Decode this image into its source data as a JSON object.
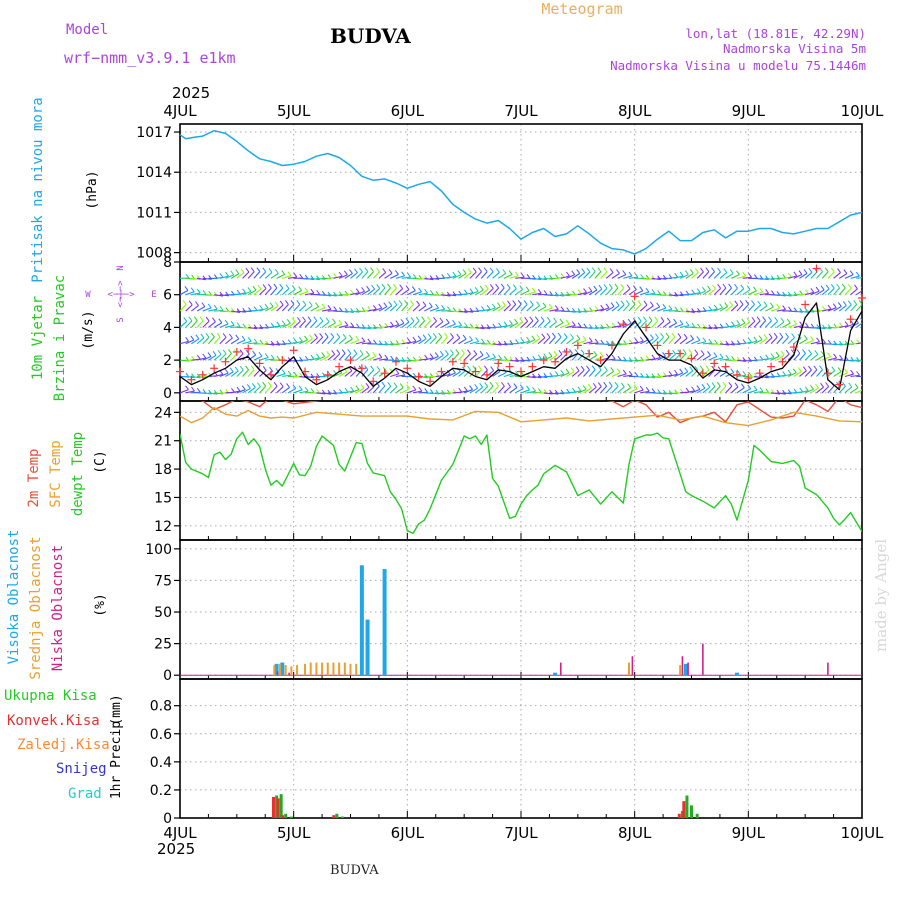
{
  "header": {
    "model_label": "Model",
    "model_name": "wrf−nmm_v3.9.1  e1km",
    "station": "BUDVA",
    "meteogram": "Meteogram",
    "lonlat": "lon,lat (18.81E, 42.29N)",
    "elevation": "Nadmorska Visina 5m",
    "model_elevation": "Nadmorska Visina u modelu 75.1446m",
    "year": "2025",
    "footer_station": "BUDVA",
    "watermark": "made by Angel"
  },
  "colors": {
    "pressure": "#1ea8e8",
    "wind_speed": "#000000",
    "gust": "#ff3333",
    "t2m": "#e8503a",
    "sfc": "#e8a030",
    "dewpt": "#22cc22",
    "high_cloud": "#1ea8e8",
    "mid_cloud": "#e8a030",
    "low_cloud": "#cc2288",
    "total_precip": "#22aa22",
    "conv_precip": "#e83030",
    "frozen_precip": "#ff8833",
    "snow": "#3333dd",
    "hail": "#22cccc",
    "label_purple": "#aa44dd",
    "label_orange": "#e8b060"
  },
  "chart_data": [
    {
      "id": "pressure",
      "type": "line",
      "x_ticks": [
        "4JUL",
        "5JUL",
        "6JUL",
        "7JUL",
        "8JUL",
        "9JUL",
        "10JUL"
      ],
      "xlim": [
        0,
        6
      ],
      "ylabel": "Pritisak na nivou mora",
      "unit": "(hPa)",
      "yticks": [
        1008,
        1011,
        1014,
        1017
      ],
      "ylim": [
        1007.3,
        1017.6
      ],
      "series": [
        {
          "x": [
            0,
            0.05,
            0.12,
            0.2,
            0.3,
            0.4,
            0.5,
            0.6,
            0.7,
            0.8,
            0.9,
            1.0,
            1.1,
            1.2,
            1.3,
            1.4,
            1.5,
            1.6,
            1.7,
            1.8,
            1.9,
            2.0,
            2.1,
            2.2,
            2.3,
            2.4,
            2.5,
            2.6,
            2.7,
            2.8,
            2.9,
            3.0,
            3.1,
            3.2,
            3.3,
            3.4,
            3.5,
            3.6,
            3.7,
            3.8,
            3.9,
            4.0,
            4.1,
            4.2,
            4.3,
            4.4,
            4.5,
            4.6,
            4.7,
            4.8,
            4.9,
            5.0,
            5.1,
            5.2,
            5.3,
            5.4,
            5.5,
            5.6,
            5.7,
            5.8,
            5.9,
            6.0
          ],
          "y": [
            1016.8,
            1016.5,
            1016.6,
            1016.7,
            1017.1,
            1016.9,
            1016.3,
            1015.6,
            1015.0,
            1014.8,
            1014.5,
            1014.6,
            1014.8,
            1015.2,
            1015.4,
            1015.1,
            1014.5,
            1013.7,
            1013.4,
            1013.5,
            1013.2,
            1012.8,
            1013.1,
            1013.3,
            1012.6,
            1011.6,
            1011.0,
            1010.5,
            1010.2,
            1010.4,
            1009.8,
            1009.0,
            1009.5,
            1009.8,
            1009.2,
            1009.4,
            1010.0,
            1009.4,
            1008.7,
            1008.3,
            1008.2,
            1007.9,
            1008.3,
            1009.0,
            1009.6,
            1008.9,
            1008.9,
            1009.5,
            1009.7,
            1009.1,
            1009.6,
            1009.6,
            1009.8,
            1009.8,
            1009.5,
            1009.4,
            1009.6,
            1009.8,
            1009.8,
            1010.3,
            1010.8,
            1011.0
          ]
        }
      ]
    },
    {
      "id": "wind",
      "type": "line",
      "ylabel_1": "10m Vjetar",
      "ylabel_2": "Brzina i Pravac",
      "unit": "(m/s)",
      "compass": [
        "N",
        "W",
        "E",
        "S"
      ],
      "compass_arrows": "<−|−>",
      "yticks": [
        0,
        2,
        4,
        6,
        8
      ],
      "ylim": [
        -0.5,
        8
      ],
      "barb_levels": [
        0,
        1,
        2,
        3,
        4,
        5,
        6,
        7
      ],
      "series": [
        {
          "key": "speed",
          "x": [
            0,
            0.1,
            0.2,
            0.3,
            0.4,
            0.5,
            0.6,
            0.7,
            0.8,
            0.9,
            1.0,
            1.1,
            1.2,
            1.3,
            1.4,
            1.5,
            1.6,
            1.7,
            1.8,
            1.9,
            2.0,
            2.1,
            2.2,
            2.3,
            2.4,
            2.5,
            2.6,
            2.7,
            2.8,
            2.9,
            3.0,
            3.1,
            3.2,
            3.3,
            3.4,
            3.5,
            3.6,
            3.7,
            3.8,
            3.9,
            4.0,
            4.1,
            4.2,
            4.3,
            4.4,
            4.5,
            4.6,
            4.7,
            4.8,
            4.9,
            5.0,
            5.1,
            5.2,
            5.3,
            5.4,
            5.5,
            5.6,
            5.7,
            5.8,
            5.9,
            6.0
          ],
          "y": [
            1.0,
            0.5,
            0.8,
            1.2,
            1.5,
            2.0,
            2.2,
            1.4,
            0.8,
            1.6,
            2.2,
            1.0,
            0.5,
            0.8,
            1.3,
            1.6,
            1.2,
            0.4,
            0.9,
            1.5,
            1.2,
            0.7,
            0.4,
            1.0,
            1.5,
            1.4,
            1.0,
            0.8,
            1.4,
            1.3,
            1.0,
            1.3,
            1.6,
            1.5,
            2.1,
            2.4,
            2.0,
            1.6,
            2.4,
            3.6,
            4.4,
            3.4,
            2.4,
            2.0,
            2.0,
            1.7,
            0.9,
            1.4,
            1.3,
            0.8,
            0.6,
            0.9,
            1.3,
            1.5,
            2.3,
            4.6,
            5.5,
            0.8,
            0.2,
            3.8,
            5.0
          ]
        },
        {
          "key": "gust",
          "x": [
            0,
            0.1,
            0.2,
            0.3,
            0.4,
            0.5,
            0.6,
            0.7,
            0.8,
            0.9,
            1.0,
            1.1,
            1.2,
            1.3,
            1.4,
            1.5,
            1.6,
            1.7,
            1.8,
            1.9,
            2.0,
            2.1,
            2.2,
            2.3,
            2.4,
            2.5,
            2.6,
            2.7,
            2.8,
            2.9,
            3.0,
            3.1,
            3.2,
            3.3,
            3.4,
            3.5,
            3.6,
            3.7,
            3.8,
            3.9,
            4.0,
            4.1,
            4.2,
            4.3,
            4.4,
            4.5,
            4.6,
            4.7,
            4.8,
            4.9,
            5.0,
            5.1,
            5.2,
            5.3,
            5.4,
            5.5,
            5.6,
            5.7,
            5.8,
            5.9,
            6.0
          ],
          "y": [
            1.3,
            0.8,
            1.1,
            1.5,
            1.9,
            2.5,
            2.7,
            1.8,
            1.1,
            2.0,
            2.6,
            1.3,
            0.8,
            1.1,
            1.6,
            2.0,
            1.5,
            0.7,
            1.2,
            1.9,
            1.5,
            1.0,
            0.7,
            1.3,
            1.9,
            1.8,
            1.3,
            1.1,
            1.8,
            1.6,
            1.3,
            1.6,
            2.0,
            1.9,
            2.5,
            2.9,
            2.4,
            2.0,
            2.9,
            4.2,
            5.9,
            4.0,
            2.9,
            2.4,
            2.4,
            2.1,
            1.2,
            1.8,
            1.6,
            1.1,
            0.9,
            1.2,
            1.6,
            1.9,
            2.8,
            5.4,
            7.6,
            1.2,
            0.5,
            4.5,
            5.8
          ]
        }
      ]
    },
    {
      "id": "temperature",
      "type": "line",
      "ylabel_1": "2m Temp",
      "ylabel_2": "SFC Temp",
      "ylabel_3": "dewpt Temp",
      "unit": "(C)",
      "yticks": [
        12,
        15,
        18,
        21,
        24
      ],
      "ylim": [
        10.5,
        25.2
      ],
      "series": [
        {
          "key": "t2m",
          "x": [
            0,
            0.1,
            0.2,
            0.3,
            0.4,
            0.5,
            0.6,
            0.7,
            0.8,
            0.9,
            1.0,
            1.2,
            1.4,
            1.6,
            1.8,
            2.0,
            2.2,
            2.4,
            2.6,
            2.8,
            3.0,
            3.2,
            3.4,
            3.6,
            3.8,
            3.9,
            4.0,
            4.1,
            4.2,
            4.3,
            4.4,
            4.5,
            4.6,
            4.7,
            4.8,
            4.9,
            5.0,
            5.1,
            5.2,
            5.3,
            5.4,
            5.5,
            5.6,
            5.7,
            5.8,
            5.9,
            6.0
          ],
          "y": [
            25.5,
            25.6,
            25.2,
            24.3,
            24.8,
            25.4,
            25.1,
            24.6,
            25.6,
            25.3,
            24.9,
            25.2,
            25.6,
            25.4,
            25.3,
            25.5,
            25.6,
            25.5,
            25.4,
            25.6,
            25.5,
            25.6,
            25.6,
            25.5,
            25.2,
            24.6,
            25.3,
            24.8,
            23.5,
            24.0,
            22.9,
            23.4,
            23.6,
            24.0,
            23.0,
            24.8,
            25.1,
            24.3,
            23.5,
            23.4,
            23.6,
            25.3,
            24.8,
            24.1,
            25.6,
            24.8,
            24.5
          ]
        },
        {
          "key": "sfc",
          "x": [
            0,
            0.1,
            0.2,
            0.3,
            0.4,
            0.5,
            0.6,
            0.7,
            0.8,
            0.9,
            1.0,
            1.2,
            1.4,
            1.6,
            1.8,
            2.0,
            2.2,
            2.4,
            2.6,
            2.8,
            3.0,
            3.2,
            3.4,
            3.6,
            3.8,
            4.0,
            4.2,
            4.4,
            4.6,
            4.8,
            5.0,
            5.2,
            5.4,
            5.6,
            5.8,
            6.0
          ],
          "y": [
            23.6,
            22.9,
            23.4,
            24.5,
            23.8,
            23.6,
            24.2,
            23.6,
            23.4,
            23.5,
            23.4,
            24.0,
            23.8,
            23.6,
            23.6,
            23.6,
            23.3,
            23.2,
            24.1,
            24.0,
            23.0,
            23.2,
            23.4,
            23.1,
            23.3,
            23.5,
            23.7,
            23.2,
            23.6,
            22.9,
            22.6,
            23.2,
            24.0,
            23.6,
            23.1,
            23.0
          ]
        },
        {
          "key": "dewpt",
          "x": [
            0,
            0.05,
            0.1,
            0.2,
            0.25,
            0.3,
            0.35,
            0.4,
            0.45,
            0.5,
            0.55,
            0.6,
            0.65,
            0.7,
            0.75,
            0.8,
            0.85,
            0.9,
            0.95,
            1.0,
            1.05,
            1.1,
            1.15,
            1.2,
            1.25,
            1.3,
            1.35,
            1.4,
            1.45,
            1.5,
            1.55,
            1.6,
            1.65,
            1.7,
            1.8,
            1.85,
            1.9,
            1.95,
            2.0,
            2.05,
            2.1,
            2.15,
            2.2,
            2.3,
            2.4,
            2.5,
            2.55,
            2.6,
            2.65,
            2.7,
            2.75,
            2.8,
            2.9,
            2.95,
            3.0,
            3.05,
            3.1,
            3.15,
            3.2,
            3.3,
            3.4,
            3.5,
            3.6,
            3.7,
            3.8,
            3.9,
            3.95,
            4.0,
            4.1,
            4.15,
            4.2,
            4.25,
            4.3,
            4.4,
            4.45,
            4.5,
            4.6,
            4.7,
            4.8,
            4.85,
            4.9,
            5.0,
            5.05,
            5.1,
            5.2,
            5.3,
            5.4,
            5.45,
            5.5,
            5.6,
            5.7,
            5.75,
            5.8,
            5.85,
            5.9,
            6.0
          ],
          "y": [
            21.7,
            18.7,
            18.0,
            17.5,
            17.1,
            19.5,
            19.8,
            19.0,
            19.6,
            21.2,
            21.9,
            20.6,
            21.2,
            20.4,
            18.0,
            16.3,
            16.8,
            16.2,
            17.4,
            18.6,
            17.4,
            17.3,
            18.3,
            20.4,
            21.5,
            21.0,
            20.5,
            18.5,
            17.8,
            19.3,
            20.8,
            20.7,
            18.6,
            17.6,
            17.3,
            15.6,
            14.8,
            13.8,
            11.5,
            11.2,
            12.2,
            12.6,
            13.8,
            16.8,
            18.5,
            21.5,
            21.2,
            21.5,
            20.6,
            21.6,
            17.0,
            16.2,
            12.8,
            13.0,
            14.3,
            15.2,
            15.8,
            16.3,
            17.5,
            18.4,
            17.7,
            15.2,
            15.8,
            14.3,
            15.6,
            14.4,
            18.5,
            21.2,
            21.6,
            21.6,
            21.8,
            21.3,
            21.2,
            17.5,
            15.6,
            15.2,
            14.6,
            13.9,
            15.2,
            14.3,
            12.6,
            16.8,
            20.5,
            20.0,
            18.8,
            18.6,
            18.9,
            18.3,
            16.0,
            15.3,
            13.9,
            12.8,
            12.1,
            12.7,
            13.4,
            11.4
          ]
        }
      ]
    },
    {
      "id": "clouds",
      "type": "bar",
      "ylabel_1": "Visoka Oblacnost",
      "ylabel_2": "Srednja Oblacnost",
      "ylabel_3": "Niska Oblacnost",
      "unit": "(%)",
      "yticks": [
        0,
        25,
        50,
        75,
        100
      ],
      "ylim": [
        -3,
        107
      ],
      "series": [
        {
          "key": "high",
          "x": [
            0.85,
            0.9,
            1.6,
            1.65,
            1.8,
            3.3,
            4.45,
            4.9
          ],
          "values": [
            9,
            10,
            87,
            44,
            84,
            2,
            9,
            2
          ]
        },
        {
          "key": "mid",
          "x": [
            0.83,
            0.88,
            0.93,
            0.98,
            1.03,
            1.1,
            1.15,
            1.2,
            1.25,
            1.3,
            1.35,
            1.4,
            1.45,
            1.5,
            1.55,
            3.95,
            4.4
          ],
          "values": [
            8,
            9,
            8,
            7,
            8,
            9,
            10,
            10,
            10,
            10,
            10,
            10,
            10,
            9,
            9,
            10,
            8
          ]
        },
        {
          "key": "low",
          "x": [
            0.86,
            0.96,
            3.35,
            3.98,
            4.42,
            4.47,
            4.6,
            5.7
          ],
          "values": [
            3,
            2,
            10,
            15,
            15,
            10,
            25,
            10
          ]
        }
      ]
    },
    {
      "id": "precip",
      "type": "bar",
      "ylabel_1": "Ukupna Kisa",
      "ylabel_2": "Konvek.Kisa",
      "ylabel_3": "Zaledj.Kisa",
      "ylabel_4": "Snijeg",
      "ylabel_5": "Grad",
      "ylabel_6": "1hr Precip",
      "unit": "(mm)",
      "yticks": [
        0,
        0.2,
        0.4,
        0.6,
        0.8
      ],
      "ylim": [
        0,
        0.99
      ],
      "series": [
        {
          "key": "total",
          "x": [
            0.85,
            0.89,
            0.93,
            0.98,
            1.38,
            1.43,
            4.42,
            4.46,
            4.5,
            4.55
          ],
          "values": [
            0.16,
            0.17,
            0.03,
            0.01,
            0.03,
            0.01,
            0.05,
            0.16,
            0.09,
            0.03
          ]
        },
        {
          "key": "conv",
          "x": [
            0.84,
            0.88,
            0.92,
            1.37,
            4.41,
            4.45
          ],
          "values": [
            0.15,
            0.14,
            0.02,
            0.02,
            0.03,
            0.12
          ]
        }
      ]
    }
  ]
}
